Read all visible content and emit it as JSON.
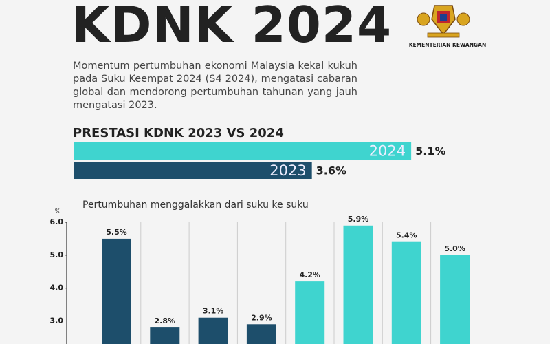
{
  "header": {
    "title": "KDNK 2024",
    "ministry": "KEMENTERIAN KEWANGAN",
    "description": "Momentum pertumbuhan ekonomi Malaysia kekal kukuh pada Suku Keempat 2024 (S4 2024), mengatasi cabaran global dan mendorong pertumbuhan tahunan yang jauh mengatasi 2023."
  },
  "chart_data": [
    {
      "type": "hbar",
      "title": "PRESTASI KDNK 2023 VS 2024",
      "categories": [
        "2024",
        "2023"
      ],
      "values": [
        5.1,
        3.6
      ],
      "value_labels": [
        "5.1%",
        "3.6%"
      ],
      "colors": [
        "#3fd4cf",
        "#1d4e6b"
      ]
    },
    {
      "type": "bar",
      "subtitle": "Pertumbuhan menggalakkan dari suku ke suku",
      "y_label": "%",
      "categories": [
        null,
        null,
        null,
        null,
        null,
        null,
        null,
        null
      ],
      "values": [
        5.5,
        2.8,
        3.1,
        2.9,
        4.2,
        5.9,
        5.4,
        5.0
      ],
      "value_labels": [
        "5.5%",
        "2.8%",
        "3.1%",
        "2.9%",
        "4.2%",
        "5.9%",
        "5.4%",
        "5.0%"
      ],
      "colors": [
        "#1d4e6b",
        "#1d4e6b",
        "#1d4e6b",
        "#1d4e6b",
        "#3fd4cf",
        "#3fd4cf",
        "#3fd4cf",
        "#3fd4cf"
      ],
      "ylim": [
        2.3,
        6.0
      ],
      "yticks": [
        {
          "value": 3,
          "label": "3.0"
        },
        {
          "value": 4,
          "label": "4.0"
        },
        {
          "value": 5,
          "label": "5.0"
        },
        {
          "value": 6,
          "label": "6.0"
        }
      ]
    }
  ]
}
